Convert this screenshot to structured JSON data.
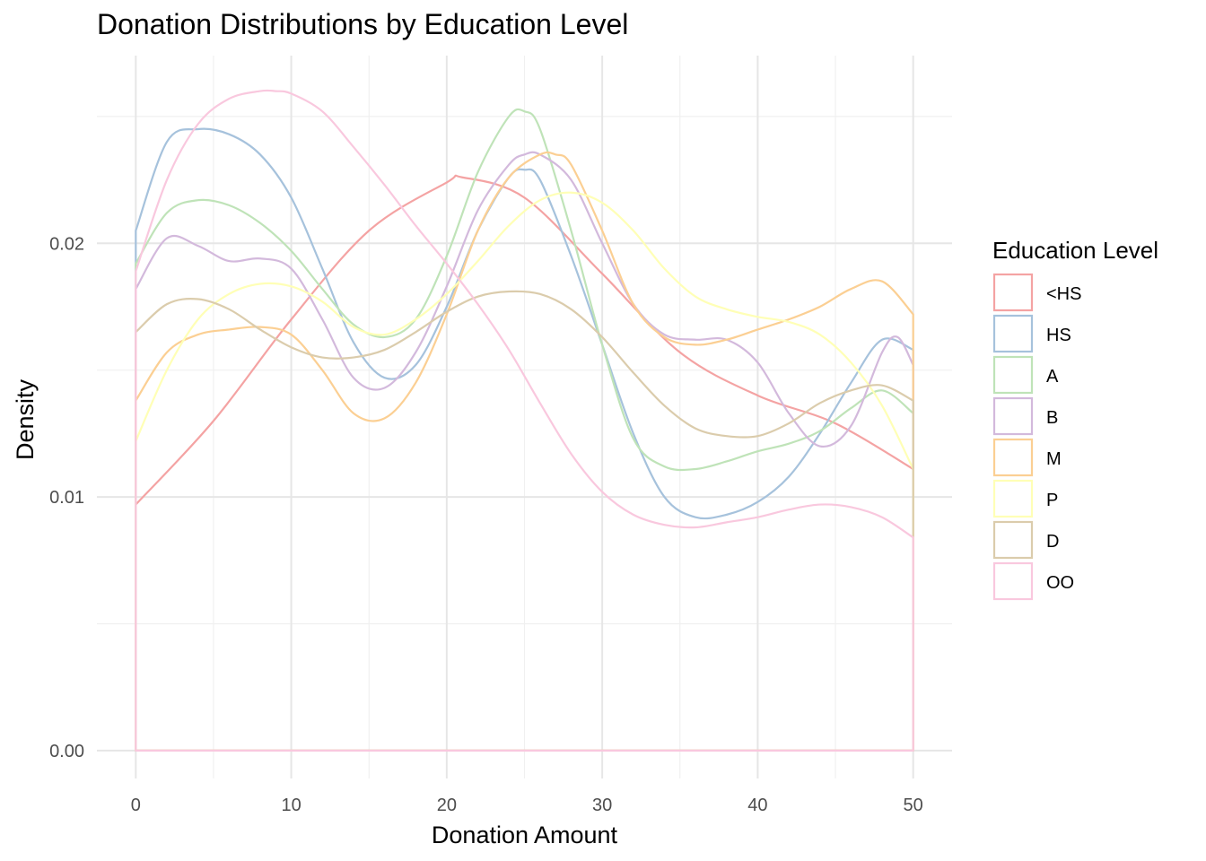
{
  "chart_data": {
    "type": "line",
    "title": "Donation Distributions by Education Level",
    "xlabel": "Donation Amount",
    "ylabel": "Density",
    "xlim": [
      -2.5,
      52.5
    ],
    "ylim": [
      -0.0011,
      0.0274
    ],
    "x_ticks": [
      0,
      10,
      20,
      30,
      40,
      50
    ],
    "x_tick_labels": [
      "0",
      "10",
      "20",
      "30",
      "40",
      "50"
    ],
    "x_minor_ticks": [
      5,
      15,
      25,
      35,
      45
    ],
    "y_ticks": [
      0,
      0.01,
      0.02
    ],
    "y_tick_labels": [
      "0.00",
      "0.01",
      "0.02"
    ],
    "y_minor_ticks": [
      0.005,
      0.015,
      0.025
    ],
    "grid": true,
    "legend_title": "Education Level",
    "legend_position": "right",
    "series": [
      {
        "name": "<HS",
        "color": "#f4a3a3",
        "x": [
          0,
          5,
          10,
          15,
          20,
          21,
          25,
          30,
          35,
          40,
          45,
          50
        ],
        "y": [
          0.0097,
          0.013,
          0.017,
          0.0205,
          0.0224,
          0.0226,
          0.0218,
          0.0188,
          0.0157,
          0.014,
          0.0129,
          0.0111
        ]
      },
      {
        "name": "HS",
        "color": "#a6c2dc",
        "x": [
          0,
          2,
          4,
          6,
          8,
          10,
          12,
          14,
          16,
          18,
          20,
          22,
          24,
          25,
          26,
          28,
          30,
          32,
          34,
          36,
          38,
          40,
          42,
          44,
          46,
          48,
          50
        ],
        "y": [
          0.0205,
          0.024,
          0.0245,
          0.0243,
          0.0235,
          0.0218,
          0.019,
          0.0161,
          0.0147,
          0.0152,
          0.0175,
          0.0205,
          0.0226,
          0.0229,
          0.0225,
          0.0195,
          0.016,
          0.0125,
          0.01,
          0.0092,
          0.0093,
          0.0098,
          0.0108,
          0.0125,
          0.0145,
          0.0162,
          0.0158
        ]
      },
      {
        "name": "A",
        "color": "#bfe3b8",
        "x": [
          0,
          2,
          4,
          6,
          8,
          10,
          12,
          14,
          16,
          18,
          20,
          22,
          24,
          25,
          26,
          28,
          30,
          32,
          34,
          36,
          38,
          40,
          42,
          44,
          46,
          48,
          50
        ],
        "y": [
          0.0192,
          0.0212,
          0.0217,
          0.0215,
          0.0208,
          0.0197,
          0.0182,
          0.0168,
          0.0163,
          0.017,
          0.0195,
          0.0228,
          0.025,
          0.0252,
          0.0245,
          0.0205,
          0.016,
          0.0123,
          0.0112,
          0.0111,
          0.0114,
          0.0118,
          0.0121,
          0.0126,
          0.0135,
          0.0142,
          0.0133
        ]
      },
      {
        "name": "B",
        "color": "#d3b9dc",
        "x": [
          0,
          2,
          4,
          6,
          8,
          10,
          12,
          14,
          16,
          18,
          20,
          22,
          24,
          25,
          26,
          28,
          30,
          32,
          34,
          36,
          38,
          40,
          42,
          44,
          46,
          48,
          49,
          50
        ],
        "y": [
          0.0182,
          0.0202,
          0.0199,
          0.0193,
          0.0194,
          0.019,
          0.017,
          0.0147,
          0.0143,
          0.0157,
          0.0183,
          0.0213,
          0.0231,
          0.0235,
          0.0235,
          0.0225,
          0.02,
          0.0176,
          0.0164,
          0.0162,
          0.0162,
          0.0153,
          0.0133,
          0.012,
          0.0128,
          0.0157,
          0.0163,
          0.0152
        ]
      },
      {
        "name": "M",
        "color": "#fbcf93",
        "x": [
          0,
          2,
          4,
          6,
          8,
          10,
          12,
          14,
          16,
          18,
          20,
          22,
          24,
          26,
          27,
          28,
          30,
          32,
          34,
          36,
          38,
          40,
          42,
          44,
          46,
          48,
          50
        ],
        "y": [
          0.0138,
          0.0157,
          0.0164,
          0.0166,
          0.0167,
          0.0164,
          0.015,
          0.0133,
          0.0131,
          0.0145,
          0.0172,
          0.0205,
          0.0226,
          0.0235,
          0.0235,
          0.0231,
          0.0205,
          0.0176,
          0.0163,
          0.016,
          0.0162,
          0.0166,
          0.017,
          0.0175,
          0.0182,
          0.0185,
          0.0172
        ]
      },
      {
        "name": "P",
        "color": "#ffffb6",
        "x": [
          0,
          2,
          4,
          6,
          8,
          10,
          12,
          14,
          16,
          18,
          20,
          22,
          24,
          26,
          28,
          30,
          32,
          34,
          36,
          38,
          40,
          42,
          44,
          46,
          48,
          50
        ],
        "y": [
          0.0122,
          0.015,
          0.017,
          0.018,
          0.0184,
          0.0183,
          0.0177,
          0.0167,
          0.0164,
          0.017,
          0.018,
          0.0193,
          0.0207,
          0.0217,
          0.022,
          0.0216,
          0.0205,
          0.019,
          0.0179,
          0.0174,
          0.0171,
          0.0169,
          0.0164,
          0.0153,
          0.0136,
          0.0111
        ]
      },
      {
        "name": "D",
        "color": "#dbccac",
        "x": [
          0,
          2,
          4,
          6,
          8,
          10,
          12,
          14,
          16,
          18,
          20,
          22,
          24,
          26,
          28,
          30,
          32,
          34,
          36,
          38,
          40,
          42,
          44,
          46,
          48,
          50
        ],
        "y": [
          0.0165,
          0.0176,
          0.0178,
          0.0174,
          0.0166,
          0.0159,
          0.0155,
          0.0155,
          0.0158,
          0.0165,
          0.0173,
          0.0179,
          0.0181,
          0.018,
          0.0174,
          0.0163,
          0.0149,
          0.0136,
          0.0127,
          0.0124,
          0.0124,
          0.0129,
          0.0137,
          0.0142,
          0.0144,
          0.0138
        ]
      },
      {
        "name": "OO",
        "color": "#f9c8de",
        "x": [
          0,
          2,
          4,
          6,
          8,
          9,
          10,
          12,
          14,
          16,
          18,
          20,
          22,
          24,
          26,
          28,
          30,
          32,
          34,
          36,
          38,
          40,
          42,
          44,
          46,
          48,
          50
        ],
        "y": [
          0.0189,
          0.0225,
          0.0247,
          0.0257,
          0.026,
          0.026,
          0.0259,
          0.0252,
          0.0238,
          0.0223,
          0.0207,
          0.0192,
          0.0176,
          0.0158,
          0.0137,
          0.0117,
          0.0102,
          0.0093,
          0.0089,
          0.0088,
          0.009,
          0.0092,
          0.0095,
          0.0097,
          0.0096,
          0.0092,
          0.0084
        ]
      }
    ]
  }
}
